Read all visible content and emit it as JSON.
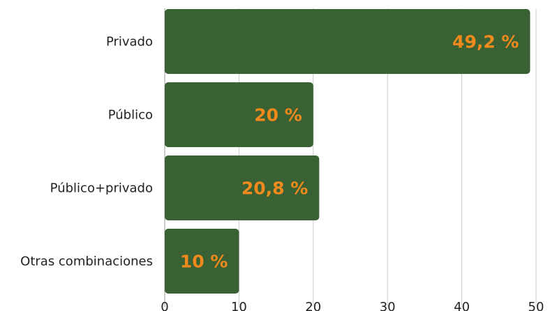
{
  "chart_data": {
    "type": "bar",
    "orientation": "horizontal",
    "categories": [
      "Privado",
      "Público",
      "Público+privado",
      "Otras combinaciones"
    ],
    "values": [
      49.2,
      20,
      20.8,
      10
    ],
    "data_labels": [
      "49,2 %",
      "20 %",
      "20,8 %",
      "10 %"
    ],
    "xlim": [
      0,
      50
    ],
    "x_ticks": [
      "0",
      "10",
      "20",
      "30",
      "40",
      "50"
    ],
    "grid": "vertical",
    "title": "",
    "xlabel": "",
    "ylabel": "",
    "bar_color": "#3a6133",
    "label_color": "#f08a1c",
    "grid_color": "#cccccc"
  }
}
